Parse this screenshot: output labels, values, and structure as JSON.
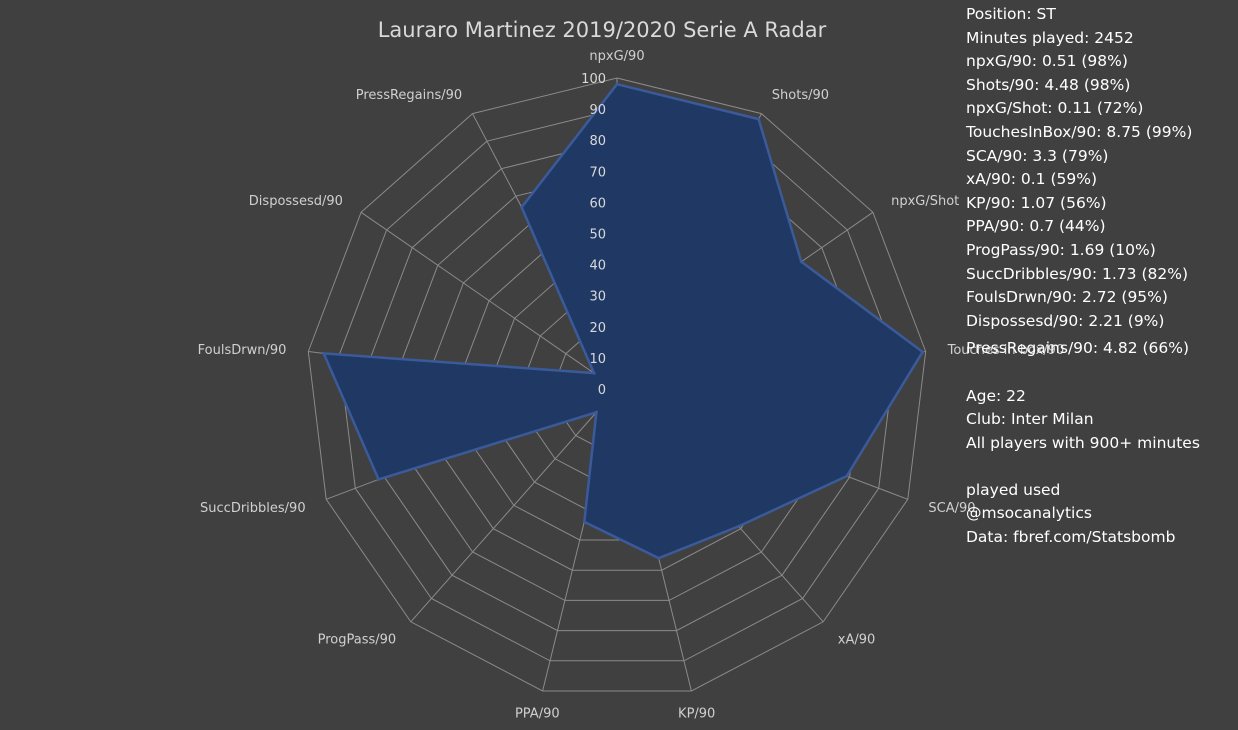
{
  "chart_data": {
    "type": "radar",
    "title": "Lauraro Martinez 2019/2020 Serie A Radar",
    "axes": [
      "npxG/90",
      "Shots/90",
      "npxG/Shot",
      "Touches in box/90",
      "SCA/90",
      "xA/90",
      "KP/90",
      "PPA/90",
      "ProgPass/90",
      "SuccDribbles/90",
      "FoulsDrwn/90",
      "Dispossesd/90",
      "PressRegains/90"
    ],
    "values": [
      98,
      98,
      72,
      99,
      79,
      59,
      56,
      44,
      10,
      82,
      95,
      9,
      66
    ],
    "rlim": [
      0,
      100
    ],
    "r_ticks": [
      0,
      10,
      20,
      30,
      40,
      50,
      60,
      70,
      80,
      90,
      100
    ],
    "grid": true,
    "color": "#203864"
  },
  "info": {
    "lines": [
      "Position: ST",
      "Minutes played: 2452",
      "npxG/90: 0.51 (98%)",
      "Shots/90: 4.48 (98%)",
      "npxG/Shot: 0.11 (72%)",
      "TouchesInBox/90: 8.75 (99%)",
      "SCA/90: 3.3 (79%)",
      "xA/90: 0.1 (59%)",
      "KP/90: 1.07 (56%)",
      "PPA/90: 0.7 (44%)",
      "ProgPass/90: 1.69 (10%)",
      "SuccDribbles/90: 1.73 (82%)",
      "FoulsDrwn/90: 2.72 (95%)",
      "Dispossesd/90: 2.21 (9%)"
    ],
    "press_line": "PressRegains/90: 4.82 (66%)",
    "age": "Age: 22",
    "club": "Club: Inter Milan",
    "filter": "All players with 900+ minutes",
    "played_used": "played used",
    "handle": "@msocanalytics",
    "source": "Data: fbref.com/Statsbomb"
  }
}
